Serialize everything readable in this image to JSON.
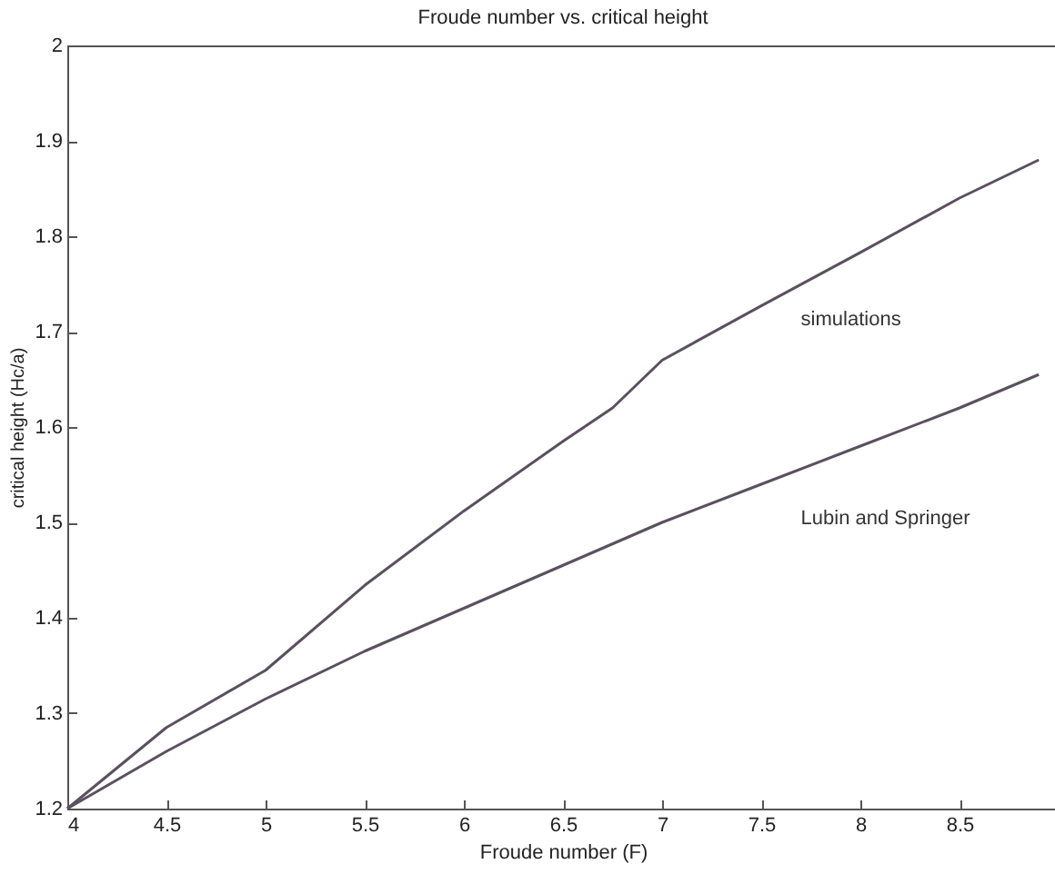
{
  "chart_data": {
    "type": "line",
    "title": "Froude number vs. critical height",
    "xlabel": "Froude number (F)",
    "ylabel": "critical height (Hc/a)",
    "xlim": [
      4,
      9
    ],
    "xticks": [
      4,
      4.5,
      5,
      5.5,
      6,
      6.5,
      7,
      7.5,
      8,
      8.5
    ],
    "ylim": [
      1.2,
      2
    ],
    "yticks": [
      1.2,
      1.3,
      1.4,
      1.5,
      1.6,
      1.7,
      1.8,
      1.9,
      2
    ],
    "grid": false,
    "legend": false,
    "series": [
      {
        "name": "simulations",
        "color": "#5a5060",
        "x": [
          4,
          4.5,
          5,
          5.5,
          6,
          6.5,
          6.75,
          7,
          7.5,
          8,
          8.5,
          8.9
        ],
        "values": [
          1.2,
          1.285,
          1.345,
          1.434,
          1.512,
          1.585,
          1.62,
          1.67,
          1.727,
          1.783,
          1.84,
          1.88
        ]
      },
      {
        "name": "Lubin and Springer",
        "color": "#5a5060",
        "x": [
          4,
          4.5,
          5,
          5.5,
          6,
          6.5,
          7,
          7.5,
          8,
          8.5,
          8.9
        ],
        "values": [
          1.2,
          1.26,
          1.315,
          1.365,
          1.41,
          1.455,
          1.5,
          1.54,
          1.58,
          1.62,
          1.655
        ]
      }
    ]
  }
}
